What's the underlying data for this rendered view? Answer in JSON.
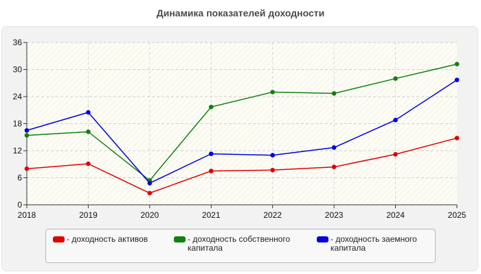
{
  "chart_data": {
    "type": "line",
    "title": "Динамика показателей доходности",
    "xlabel": "",
    "ylabel": "",
    "categories": [
      "2018",
      "2019",
      "2020",
      "2021",
      "2022",
      "2023",
      "2024",
      "2025"
    ],
    "ylim": [
      0,
      36
    ],
    "yticks": [
      "0",
      "6",
      "12",
      "18",
      "24",
      "30",
      "36"
    ],
    "grid": true,
    "legend_position": "bottom",
    "series": [
      {
        "name": "- доходность активов",
        "color": "#e00000",
        "values": [
          8.0,
          9.1,
          2.6,
          7.5,
          7.7,
          8.4,
          11.2,
          14.8
        ]
      },
      {
        "name": "- доходность собственного\nкапитала",
        "color": "#118011",
        "values": [
          15.4,
          16.2,
          5.4,
          21.7,
          25.0,
          24.7,
          28.0,
          31.2
        ]
      },
      {
        "name": "- доходность заемного\nкапитала",
        "color": "#0000e0",
        "values": [
          16.5,
          20.5,
          4.8,
          11.3,
          11.0,
          12.7,
          18.8,
          27.7
        ]
      }
    ]
  }
}
